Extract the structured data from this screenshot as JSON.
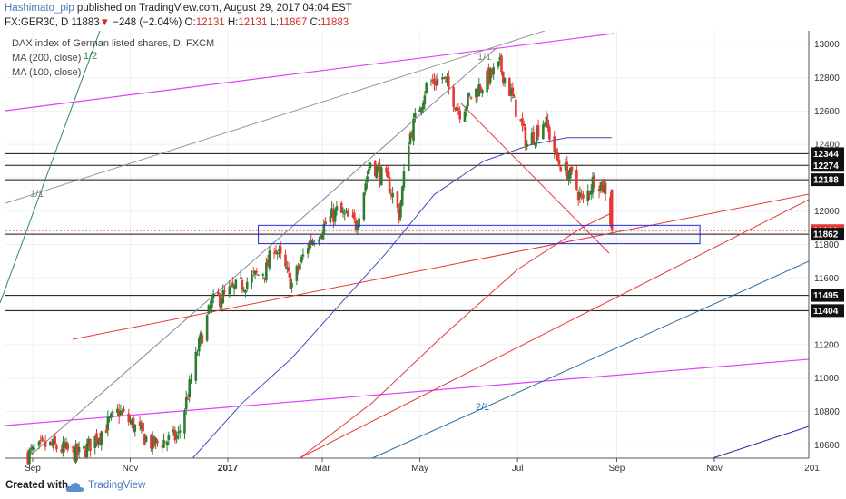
{
  "header": {
    "author": "Hashimato_pip",
    "published_text": "published on TradingView.com, August 29, 2017 04:04 EST",
    "symbol": "FX:GER30, D",
    "last": "11883",
    "change": "−248 (−2.04%)",
    "open_label": "O:",
    "open": "12131",
    "high_label": "H:",
    "high": "12131",
    "low_label": "L:",
    "low": "11867",
    "close_label": "C:",
    "close": "11883"
  },
  "legend": {
    "title": "DAX index of German listed shares, D, FXCM",
    "ma200": "MA (200, close)",
    "ma100": "MA (100, close)"
  },
  "footer": {
    "created_with": "Created with",
    "brand": "TradingView",
    "logo_icon": "tradingview-cloud-icon"
  },
  "colors": {
    "up": "#2e7d32",
    "down": "#e53935",
    "ma200": "#3f51b5",
    "ma100": "#e53935",
    "magenta": "#e040fb",
    "grid": "#eef0f3",
    "box": "#2a2ad6"
  },
  "chart_data": {
    "type": "candlestick",
    "title": "DAX index of German listed shares, D, FXCM",
    "ylim": [
      10520,
      13080
    ],
    "y_ticks": [
      10600,
      10800,
      11000,
      11200,
      11400,
      11600,
      11800,
      12000,
      12200,
      12400,
      12600,
      12800,
      13000
    ],
    "x_ticks": [
      "Sep",
      "Nov",
      "2017",
      "Mar",
      "May",
      "Jul",
      "Sep",
      "Nov",
      "201"
    ],
    "price_badges": [
      {
        "value": 12344,
        "label": "12344"
      },
      {
        "value": 12274,
        "label": "12274"
      },
      {
        "value": 12188,
        "label": "12188"
      },
      {
        "value": 11883,
        "label": "11883",
        "current": true
      },
      {
        "value": 11862,
        "label": "11862"
      },
      {
        "value": 11495,
        "label": "11495"
      },
      {
        "value": 11404,
        "label": "11404"
      }
    ],
    "fib_labels": [
      {
        "text": "1/2",
        "color": "#2e8b57"
      },
      {
        "text": "1/1",
        "color": "#888888"
      },
      {
        "text": "1/1",
        "color": "#888888"
      },
      {
        "text": "2/1",
        "color": "#2a6fa8"
      }
    ],
    "control_points": [
      {
        "date": "2016-08-29",
        "close": 10540
      },
      {
        "date": "2016-09-10",
        "close": 10600
      },
      {
        "date": "2016-10-01",
        "close": 10540
      },
      {
        "date": "2016-10-25",
        "close": 10800
      },
      {
        "date": "2016-11-15",
        "close": 10600
      },
      {
        "date": "2016-12-01",
        "close": 10650
      },
      {
        "date": "2016-12-14",
        "close": 11200
      },
      {
        "date": "2016-12-22",
        "close": 11450
      },
      {
        "date": "2017-01-25",
        "close": 11650
      },
      {
        "date": "2017-01-30",
        "close": 11800
      },
      {
        "date": "2017-02-10",
        "close": 11560
      },
      {
        "date": "2017-02-20",
        "close": 11800
      },
      {
        "date": "2017-03-10",
        "close": 12000
      },
      {
        "date": "2017-03-22",
        "close": 11920
      },
      {
        "date": "2017-03-31",
        "close": 12300
      },
      {
        "date": "2017-04-12",
        "close": 12150
      },
      {
        "date": "2017-04-18",
        "close": 11980
      },
      {
        "date": "2017-04-24",
        "close": 12430
      },
      {
        "date": "2017-05-05",
        "close": 12750
      },
      {
        "date": "2017-05-15",
        "close": 12800
      },
      {
        "date": "2017-05-26",
        "close": 12600
      },
      {
        "date": "2017-06-03",
        "close": 12700
      },
      {
        "date": "2017-06-20",
        "close": 12870
      },
      {
        "date": "2017-06-27",
        "close": 12700
      },
      {
        "date": "2017-07-07",
        "close": 12400
      },
      {
        "date": "2017-07-18",
        "close": 12550
      },
      {
        "date": "2017-07-26",
        "close": 12300
      },
      {
        "date": "2017-08-04",
        "close": 12200
      },
      {
        "date": "2017-08-11",
        "close": 12050
      },
      {
        "date": "2017-08-18",
        "close": 12200
      },
      {
        "date": "2017-08-25",
        "close": 12131
      },
      {
        "date": "2017-08-29",
        "close": 11883
      }
    ],
    "ma200_points": [
      {
        "date": "2016-12-10",
        "value": 10520
      },
      {
        "date": "2017-01-10",
        "value": 10850
      },
      {
        "date": "2017-02-10",
        "value": 11120
      },
      {
        "date": "2017-03-10",
        "value": 11420
      },
      {
        "date": "2017-04-10",
        "value": 11750
      },
      {
        "date": "2017-05-10",
        "value": 12100
      },
      {
        "date": "2017-06-10",
        "value": 12300
      },
      {
        "date": "2017-07-10",
        "value": 12400
      },
      {
        "date": "2017-08-01",
        "value": 12440
      },
      {
        "date": "2017-08-29",
        "value": 12440
      }
    ],
    "ma100_points": [
      {
        "date": "2017-02-15",
        "value": 10520
      },
      {
        "date": "2017-04-01",
        "value": 10850
      },
      {
        "date": "2017-05-15",
        "value": 11250
      },
      {
        "date": "2017-07-01",
        "value": 11650
      },
      {
        "date": "2017-08-10",
        "value": 11900
      },
      {
        "date": "2017-08-29",
        "value": 11990
      }
    ],
    "horizontal_levels": [
      12344,
      12274,
      12188,
      11883,
      11862,
      11495,
      11404
    ],
    "support_zone": {
      "from_date": "2017-01-20",
      "to_date": "2017-10-23",
      "low": 11805,
      "high": 11915
    }
  }
}
